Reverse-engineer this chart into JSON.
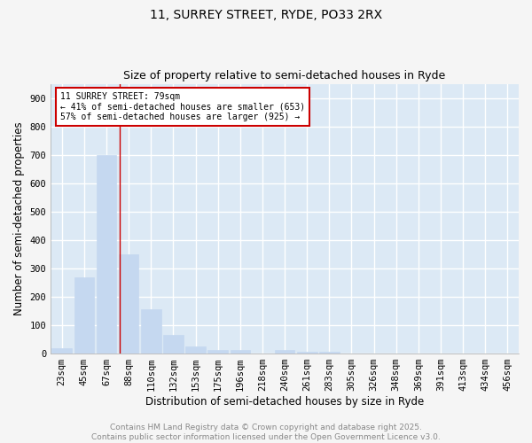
{
  "title": "11, SURREY STREET, RYDE, PO33 2RX",
  "subtitle": "Size of property relative to semi-detached houses in Ryde",
  "xlabel": "Distribution of semi-detached houses by size in Ryde",
  "ylabel": "Number of semi-detached properties",
  "bar_color": "#c5d8f0",
  "bar_edge_color": "#c5d8f0",
  "plot_bg_color": "#dce9f5",
  "fig_bg_color": "#f5f5f5",
  "grid_color": "#ffffff",
  "categories": [
    "23sqm",
    "45sqm",
    "67sqm",
    "88sqm",
    "110sqm",
    "132sqm",
    "153sqm",
    "175sqm",
    "196sqm",
    "218sqm",
    "240sqm",
    "261sqm",
    "283sqm",
    "305sqm",
    "326sqm",
    "348sqm",
    "369sqm",
    "391sqm",
    "413sqm",
    "434sqm",
    "456sqm"
  ],
  "values": [
    20,
    270,
    700,
    350,
    155,
    65,
    25,
    12,
    12,
    0,
    12,
    8,
    5,
    0,
    0,
    0,
    0,
    0,
    0,
    0,
    0
  ],
  "ylim": [
    0,
    950
  ],
  "yticks": [
    0,
    100,
    200,
    300,
    400,
    500,
    600,
    700,
    800,
    900
  ],
  "red_line_x": 2.58,
  "annotation_text": "11 SURREY STREET: 79sqm\n← 41% of semi-detached houses are smaller (653)\n57% of semi-detached houses are larger (925) →",
  "annotation_box_color": "#ffffff",
  "annotation_box_edge": "#cc0000",
  "footer_text": "Contains HM Land Registry data © Crown copyright and database right 2025.\nContains public sector information licensed under the Open Government Licence v3.0.",
  "title_fontsize": 10,
  "subtitle_fontsize": 9,
  "axis_label_fontsize": 8.5,
  "tick_fontsize": 7.5,
  "annotation_fontsize": 7,
  "footer_fontsize": 6.5
}
